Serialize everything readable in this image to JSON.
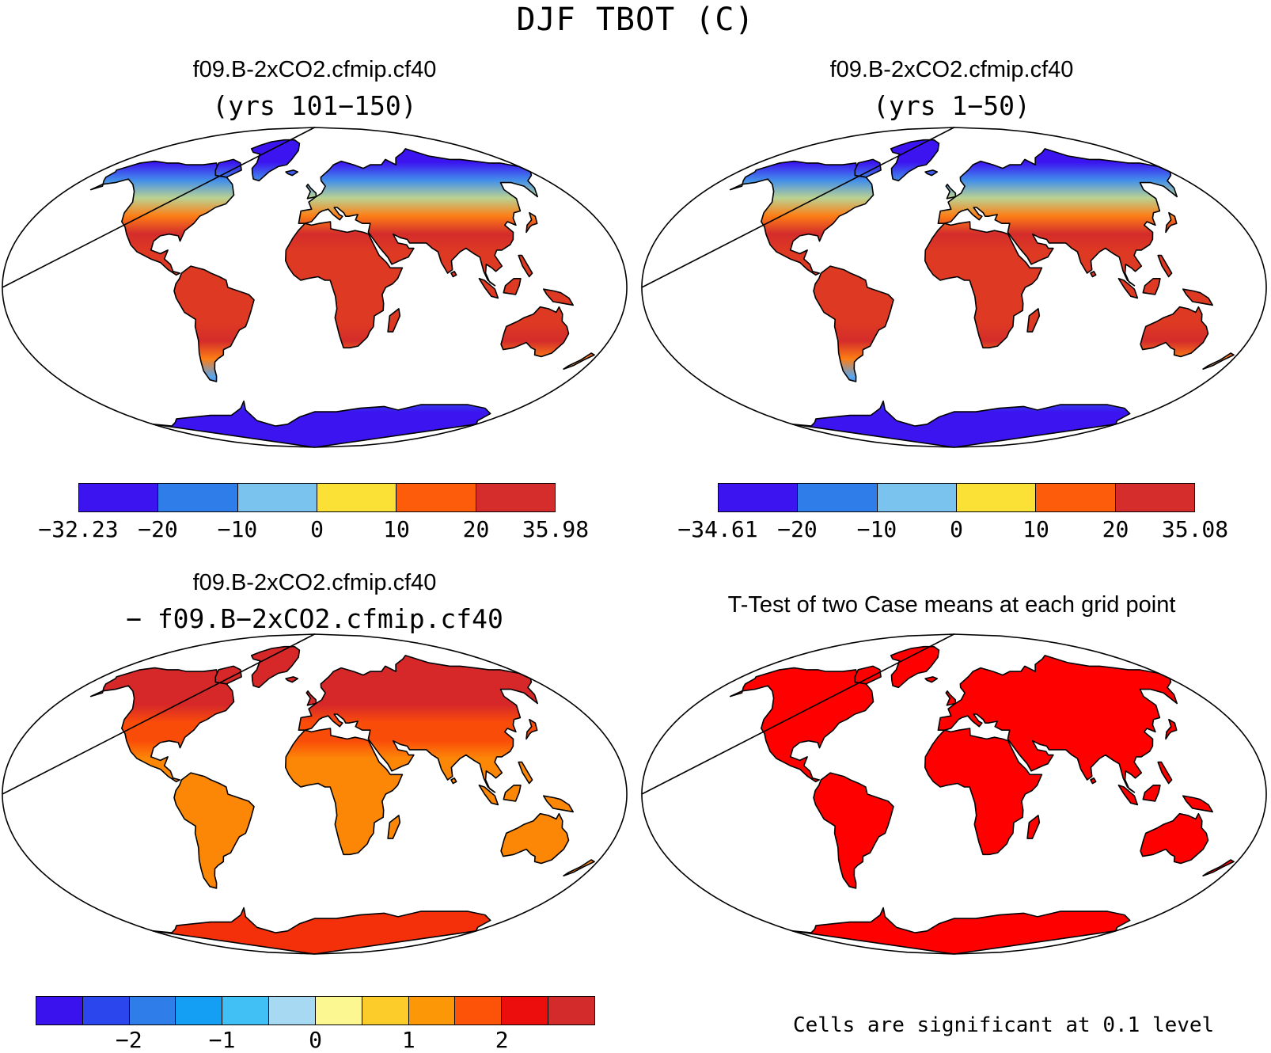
{
  "title": "DJF TBOT (C)",
  "panels": [
    {
      "id": "case1",
      "title": "f09.B-2xCO2.cfmip.cf40",
      "subtitle": "(yrs 101−150)",
      "colorbar": {
        "colors": [
          "#3b14f0",
          "#2f7de8",
          "#79c3ee",
          "#fbe135",
          "#fd5c0a",
          "#d42d2b"
        ],
        "labels": [
          "−32.23",
          "−20",
          "−10",
          "0",
          "10",
          "20",
          "35.98"
        ]
      }
    },
    {
      "id": "case2",
      "title": "f09.B-2xCO2.cfmip.cf40",
      "subtitle": "(yrs 1−50)",
      "colorbar": {
        "colors": [
          "#3b14f0",
          "#2f7de8",
          "#79c3ee",
          "#fbe135",
          "#fd5c0a",
          "#d42d2b"
        ],
        "labels": [
          "−34.61",
          "−20",
          "−10",
          "0",
          "10",
          "20",
          "35.08"
        ]
      }
    },
    {
      "id": "difference",
      "title": "f09.B-2xCO2.cfmip.cf40",
      "subtitle": "− f09.B−2xCO2.cfmip.cf40",
      "colorbar": {
        "colors": [
          "#3a12ee",
          "#2a46ec",
          "#2f7de8",
          "#159ff4",
          "#40c0f5",
          "#a8d9f2",
          "#fdf792",
          "#fccd2a",
          "#fc9807",
          "#fc5308",
          "#ec0d0d",
          "#d32b2c"
        ],
        "labels": [
          "−2",
          "−1",
          "0",
          "1",
          "2"
        ]
      }
    },
    {
      "id": "ttest",
      "title": "T-Test of two Case means at each grid point",
      "note": "Cells are significant at 0.1 level",
      "fill": "#ff0000"
    }
  ],
  "map_palette": {
    "ocean": "#ffffff",
    "coast": "#000000"
  }
}
